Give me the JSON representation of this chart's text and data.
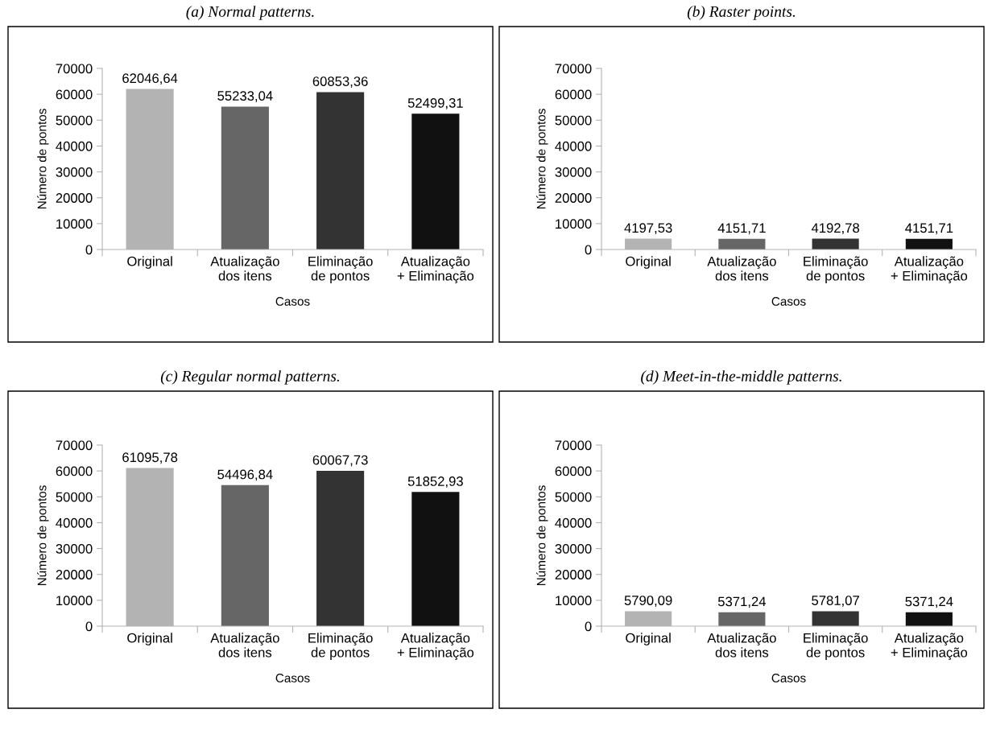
{
  "chart_data": [
    {
      "type": "bar",
      "title": "(a) Normal patterns.",
      "xlabel": "Casos",
      "ylabel": "Número de pontos",
      "categories": [
        "Original",
        "Atualização\ndos itens",
        "Eliminação\nde pontos",
        "Atualização\n+ Eliminação"
      ],
      "values": [
        62046.64,
        55233.04,
        60853.36,
        52499.31
      ],
      "value_labels": [
        "62046,64",
        "55233,04",
        "60853,36",
        "52499,31"
      ],
      "colors": [
        "#b3b3b3",
        "#666666",
        "#333333",
        "#111111"
      ],
      "ylim": [
        0,
        70000
      ],
      "yticks": [
        0,
        10000,
        20000,
        30000,
        40000,
        50000,
        60000,
        70000
      ],
      "grid": false,
      "legend": false
    },
    {
      "type": "bar",
      "title": "(b) Raster points.",
      "xlabel": "Casos",
      "ylabel": "Número de pontos",
      "categories": [
        "Original",
        "Atualização\ndos itens",
        "Eliminação\nde pontos",
        "Atualização\n+ Eliminação"
      ],
      "values": [
        4197.53,
        4151.71,
        4192.78,
        4151.71
      ],
      "value_labels": [
        "4197,53",
        "4151,71",
        "4192,78",
        "4151,71"
      ],
      "colors": [
        "#b3b3b3",
        "#666666",
        "#333333",
        "#111111"
      ],
      "ylim": [
        0,
        70000
      ],
      "yticks": [
        0,
        10000,
        20000,
        30000,
        40000,
        50000,
        60000,
        70000
      ],
      "grid": false,
      "legend": false
    },
    {
      "type": "bar",
      "title": "(c) Regular normal patterns.",
      "xlabel": "Casos",
      "ylabel": "Número de pontos",
      "categories": [
        "Original",
        "Atualização\ndos itens",
        "Eliminação\nde pontos",
        "Atualização\n+ Eliminação"
      ],
      "values": [
        61095.78,
        54496.84,
        60067.73,
        51852.93
      ],
      "value_labels": [
        "61095,78",
        "54496,84",
        "60067,73",
        "51852,93"
      ],
      "colors": [
        "#b3b3b3",
        "#666666",
        "#333333",
        "#111111"
      ],
      "ylim": [
        0,
        70000
      ],
      "yticks": [
        0,
        10000,
        20000,
        30000,
        40000,
        50000,
        60000,
        70000
      ],
      "grid": false,
      "legend": false
    },
    {
      "type": "bar",
      "title": "(d) Meet-in-the-middle patterns.",
      "xlabel": "Casos",
      "ylabel": "Número de pontos",
      "categories": [
        "Original",
        "Atualização\ndos itens",
        "Eliminação\nde pontos",
        "Atualização\n+ Eliminação"
      ],
      "values": [
        5790.09,
        5371.24,
        5781.07,
        5371.24
      ],
      "value_labels": [
        "5790,09",
        "5371,24",
        "5781,07",
        "5371,24"
      ],
      "colors": [
        "#b3b3b3",
        "#666666",
        "#333333",
        "#111111"
      ],
      "ylim": [
        0,
        70000
      ],
      "yticks": [
        0,
        10000,
        20000,
        30000,
        40000,
        50000,
        60000,
        70000
      ],
      "grid": false,
      "legend": false
    }
  ]
}
